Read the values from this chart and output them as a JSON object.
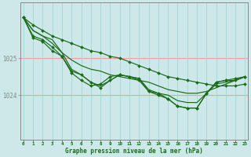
{
  "bg_color": "#cce8e8",
  "grid_color_h": "#ff9999",
  "grid_color_v": "#aad4d4",
  "line_color": "#1a6b1a",
  "marker_color": "#1a6b1a",
  "xlabel": "Graphe pression niveau de la mer (hPa)",
  "xlabel_color": "#1a6b1a",
  "tick_color": "#1a6b1a",
  "xticks": [
    0,
    1,
    2,
    3,
    4,
    5,
    6,
    7,
    8,
    9,
    10,
    11,
    12,
    13,
    14,
    15,
    16,
    17,
    18,
    19,
    20,
    21,
    22,
    23
  ],
  "yticks": [
    1024,
    1025
  ],
  "ylim": [
    1022.8,
    1026.5
  ],
  "xlim": [
    -0.3,
    23.3
  ],
  "series": [
    [
      1026.1,
      1025.9,
      1025.75,
      1025.6,
      1025.5,
      1025.4,
      1025.3,
      1025.2,
      1025.15,
      1025.05,
      1025.0,
      1024.9,
      1024.8,
      1024.7,
      1024.6,
      1024.5,
      1024.45,
      1024.4,
      1024.35,
      1024.3,
      1024.25,
      1024.25,
      1024.25,
      1024.3
    ],
    [
      1026.1,
      1025.75,
      1025.6,
      1025.5,
      1025.15,
      1024.95,
      1024.8,
      1024.7,
      1024.65,
      1024.55,
      1024.5,
      1024.45,
      1024.4,
      1024.35,
      1024.25,
      1024.15,
      1024.1,
      1024.05,
      1024.05,
      1024.1,
      1024.2,
      1024.3,
      1024.4,
      1024.5
    ],
    [
      1026.1,
      1025.75,
      1025.6,
      1025.4,
      1025.15,
      1024.7,
      1024.55,
      1024.35,
      1024.25,
      1024.4,
      1024.55,
      1024.5,
      1024.45,
      1024.15,
      1024.05,
      1024.0,
      1023.85,
      1023.8,
      1023.8,
      1024.05,
      1024.3,
      1024.35,
      1024.4,
      1024.5
    ],
    [
      1026.1,
      1025.6,
      1025.5,
      1025.3,
      1025.05,
      1024.65,
      1024.55,
      1024.35,
      1024.2,
      1024.4,
      1024.55,
      1024.5,
      1024.4,
      1024.1,
      1024.0,
      1023.9,
      1023.7,
      1023.65,
      1023.65,
      1024.05,
      1024.35,
      1024.4,
      1024.45,
      1024.5
    ],
    [
      1026.1,
      1025.55,
      1025.45,
      1025.2,
      1025.05,
      1024.6,
      1024.4,
      1024.25,
      1024.3,
      1024.5,
      1024.55,
      1024.5,
      1024.45,
      1024.1,
      1024.05,
      1023.9,
      1023.7,
      1023.65,
      1023.65,
      1024.05,
      1024.35,
      1024.4,
      1024.4,
      1024.5
    ]
  ],
  "marker_series": [
    0,
    3,
    4
  ],
  "lw": 0.85,
  "markersize": 2.0
}
